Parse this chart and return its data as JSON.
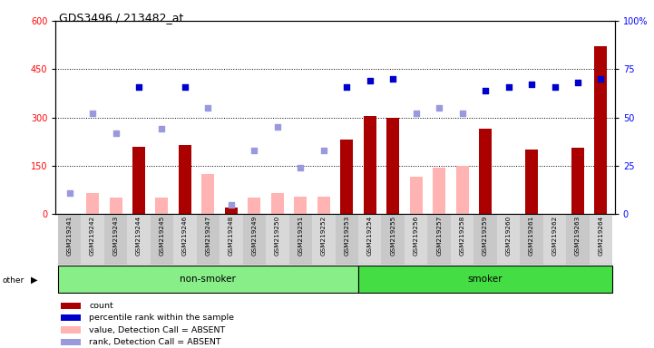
{
  "title": "GDS3496 / 213482_at",
  "samples": [
    "GSM219241",
    "GSM219242",
    "GSM219243",
    "GSM219244",
    "GSM219245",
    "GSM219246",
    "GSM219247",
    "GSM219248",
    "GSM219249",
    "GSM219250",
    "GSM219251",
    "GSM219252",
    "GSM219253",
    "GSM219254",
    "GSM219255",
    "GSM219256",
    "GSM219257",
    "GSM219258",
    "GSM219259",
    "GSM219260",
    "GSM219261",
    "GSM219262",
    "GSM219263",
    "GSM219264"
  ],
  "count": [
    null,
    null,
    null,
    210,
    null,
    215,
    null,
    20,
    null,
    null,
    null,
    null,
    230,
    305,
    300,
    null,
    null,
    null,
    265,
    null,
    200,
    null,
    205,
    520
  ],
  "count_absent": [
    null,
    65,
    50,
    null,
    50,
    null,
    125,
    null,
    50,
    65,
    55,
    55,
    null,
    null,
    null,
    115,
    145,
    150,
    null,
    null,
    null,
    null,
    null,
    null
  ],
  "rank_present_pct": [
    null,
    null,
    null,
    66,
    null,
    66,
    null,
    null,
    null,
    null,
    null,
    null,
    66,
    69,
    70,
    null,
    null,
    null,
    64,
    66,
    67,
    66,
    68,
    70
  ],
  "rank_absent_pct": [
    11,
    52,
    42,
    null,
    44,
    null,
    55,
    5,
    33,
    45,
    24,
    33,
    null,
    null,
    null,
    52,
    55,
    52,
    null,
    null,
    null,
    null,
    null,
    null
  ],
  "group": [
    "non-smoker",
    "non-smoker",
    "non-smoker",
    "non-smoker",
    "non-smoker",
    "non-smoker",
    "non-smoker",
    "non-smoker",
    "non-smoker",
    "non-smoker",
    "non-smoker",
    "non-smoker",
    "non-smoker",
    "smoker",
    "smoker",
    "smoker",
    "smoker",
    "smoker",
    "smoker",
    "smoker",
    "smoker",
    "smoker",
    "smoker",
    "smoker"
  ],
  "ylim_left": [
    0,
    600
  ],
  "ylim_right": [
    0,
    100
  ],
  "yticks_left": [
    0,
    150,
    300,
    450,
    600
  ],
  "yticks_right": [
    0,
    25,
    50,
    75,
    100
  ],
  "bar_color": "#aa0000",
  "bar_absent_color": "#ffb3b3",
  "rank_present_color": "#0000cc",
  "rank_absent_color": "#9999dd",
  "nonsmoker_color": "#88ee88",
  "smoker_color": "#44dd44",
  "legend_items": [
    {
      "label": "count",
      "color": "#aa0000"
    },
    {
      "label": "percentile rank within the sample",
      "color": "#0000cc"
    },
    {
      "label": "value, Detection Call = ABSENT",
      "color": "#ffb3b3"
    },
    {
      "label": "rank, Detection Call = ABSENT",
      "color": "#9999dd"
    }
  ]
}
